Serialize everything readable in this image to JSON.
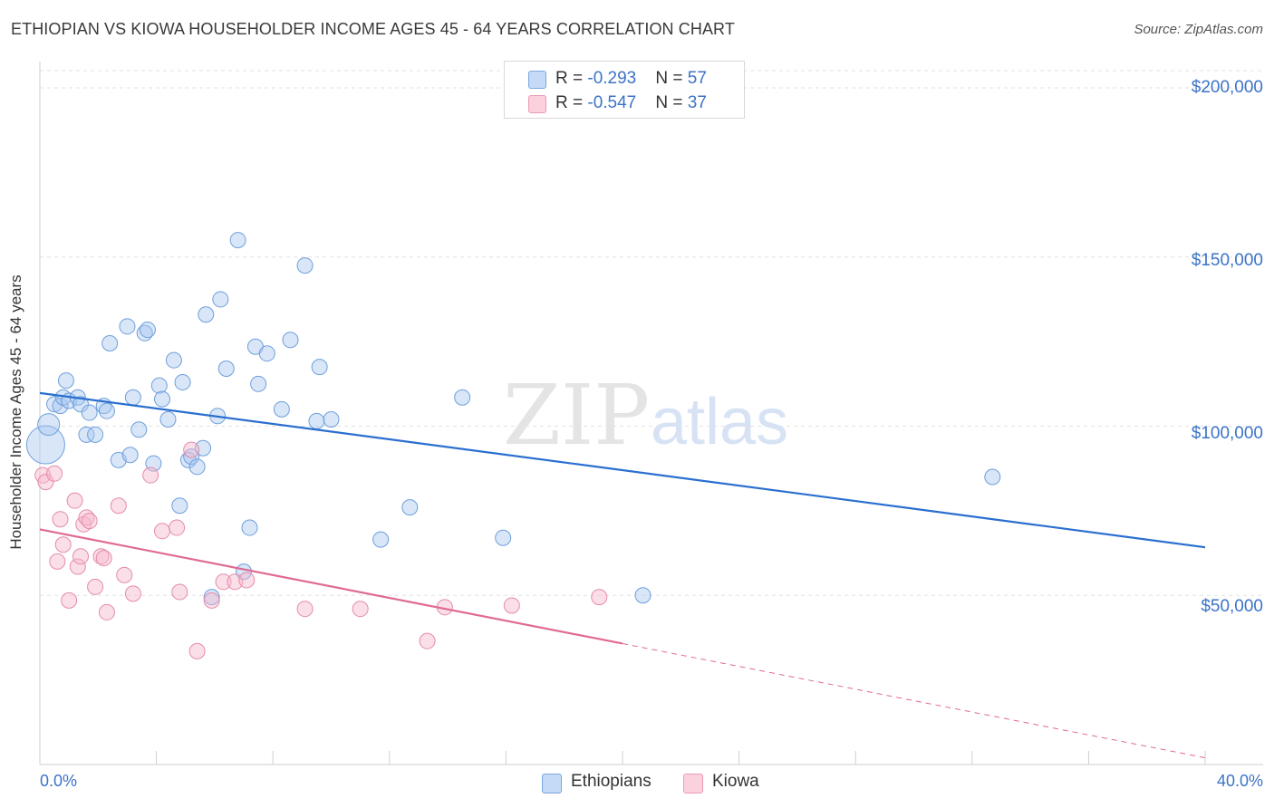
{
  "header": {
    "title": "ETHIOPIAN VS KIOWA HOUSEHOLDER INCOME AGES 45 - 64 YEARS CORRELATION CHART",
    "source": "Source: ZipAtlas.com"
  },
  "watermark": {
    "zip": "ZIP",
    "atlas": "atlas"
  },
  "legend_top": {
    "rows": [
      {
        "r_label": "R = ",
        "r_value": "-0.293",
        "n_label": "N = ",
        "n_value": "57",
        "color": "#a9c8f0"
      },
      {
        "r_label": "R = ",
        "r_value": "-0.547",
        "n_label": "N = ",
        "n_value": "37",
        "color": "#f6b8cd"
      }
    ]
  },
  "legend_bottom": [
    {
      "label": "Ethiopians",
      "color": "#a9c8f0"
    },
    {
      "label": "Kiowa",
      "color": "#f6b8cd"
    }
  ],
  "chart_data": {
    "type": "scatter",
    "title": "ETHIOPIAN VS KIOWA HOUSEHOLDER INCOME AGES 45 - 64 YEARS CORRELATION CHART",
    "xlabel": "",
    "ylabel": "Householder Income Ages 45 - 64 years",
    "xlim": [
      0,
      40
    ],
    "ylim": [
      0,
      200000
    ],
    "x_tick_labels": [
      "0.0%",
      "40.0%"
    ],
    "y_ticks": [
      50000,
      100000,
      150000,
      200000
    ],
    "y_tick_labels": [
      "$50,000",
      "$100,000",
      "$150,000",
      "$200,000"
    ],
    "grid": true,
    "legend": "bottom-center",
    "series": [
      {
        "name": "Ethiopians",
        "color": "#a9c8f0",
        "stroke": "#6f9fdc",
        "trend_color": "#2a6fd0",
        "R": -0.293,
        "N": 57,
        "trend": {
          "x": [
            0,
            40
          ],
          "y": [
            109800,
            64200
          ],
          "dashed_from": 40
        },
        "points": [
          [
            0.2,
            94500,
            3
          ],
          [
            0.3,
            100500,
            2
          ],
          [
            0.5,
            106500,
            1
          ],
          [
            0.7,
            106000,
            1
          ],
          [
            0.8,
            108500,
            1
          ],
          [
            0.9,
            113500,
            1
          ],
          [
            1.0,
            107500,
            1
          ],
          [
            1.3,
            108500,
            1
          ],
          [
            1.4,
            106500,
            1
          ],
          [
            1.6,
            97500,
            1
          ],
          [
            1.7,
            104000,
            1
          ],
          [
            1.9,
            97500,
            1
          ],
          [
            2.2,
            106000,
            1
          ],
          [
            2.3,
            104500,
            1
          ],
          [
            2.4,
            124500,
            1
          ],
          [
            2.7,
            90000,
            1
          ],
          [
            3.0,
            129500,
            1
          ],
          [
            3.1,
            91500,
            1
          ],
          [
            3.2,
            108500,
            1
          ],
          [
            3.4,
            99000,
            1
          ],
          [
            3.6,
            127500,
            1
          ],
          [
            3.7,
            128500,
            1
          ],
          [
            3.9,
            89000,
            1
          ],
          [
            4.1,
            112000,
            1
          ],
          [
            4.2,
            108000,
            1
          ],
          [
            4.4,
            102000,
            1
          ],
          [
            4.6,
            119500,
            1
          ],
          [
            4.8,
            76500,
            1
          ],
          [
            4.9,
            113000,
            1
          ],
          [
            5.1,
            90000,
            1
          ],
          [
            5.2,
            91000,
            1
          ],
          [
            5.4,
            88000,
            1
          ],
          [
            5.6,
            93500,
            1
          ],
          [
            5.7,
            133000,
            1
          ],
          [
            5.9,
            49500,
            1
          ],
          [
            6.1,
            103000,
            1
          ],
          [
            6.2,
            137500,
            1
          ],
          [
            6.4,
            117000,
            1
          ],
          [
            6.8,
            155000,
            1
          ],
          [
            7.0,
            57000,
            1
          ],
          [
            7.2,
            70000,
            1
          ],
          [
            7.4,
            123500,
            1
          ],
          [
            7.5,
            112500,
            1
          ],
          [
            7.8,
            121500,
            1
          ],
          [
            8.3,
            105000,
            1
          ],
          [
            8.6,
            125500,
            1
          ],
          [
            9.1,
            147500,
            1
          ],
          [
            9.5,
            101500,
            1
          ],
          [
            9.6,
            117500,
            1
          ],
          [
            10.0,
            102000,
            1
          ],
          [
            11.7,
            66500,
            1
          ],
          [
            12.7,
            76000,
            1
          ],
          [
            14.5,
            108500,
            1
          ],
          [
            15.9,
            67000,
            1
          ],
          [
            20.7,
            50000,
            1
          ],
          [
            32.7,
            85000,
            1
          ]
        ]
      },
      {
        "name": "Kiowa",
        "color": "#f6b8cd",
        "stroke": "#e58bab",
        "trend_color": "#e06a95",
        "R": -0.547,
        "N": 37,
        "trend": {
          "x": [
            0,
            40
          ],
          "y": [
            69500,
            2000
          ],
          "dashed_from": 20
        },
        "points": [
          [
            0.1,
            85500,
            1
          ],
          [
            0.2,
            83500,
            1
          ],
          [
            0.5,
            86000,
            1
          ],
          [
            0.6,
            60000,
            1
          ],
          [
            0.7,
            72500,
            1
          ],
          [
            0.8,
            65000,
            1
          ],
          [
            1.0,
            48500,
            1
          ],
          [
            1.2,
            78000,
            1
          ],
          [
            1.3,
            58500,
            1
          ],
          [
            1.4,
            61500,
            1
          ],
          [
            1.5,
            71000,
            1
          ],
          [
            1.6,
            73000,
            1
          ],
          [
            1.7,
            72000,
            1
          ],
          [
            1.9,
            52500,
            1
          ],
          [
            2.1,
            61500,
            1
          ],
          [
            2.2,
            61000,
            1
          ],
          [
            2.3,
            45000,
            1
          ],
          [
            2.7,
            76500,
            1
          ],
          [
            2.9,
            56000,
            1
          ],
          [
            3.2,
            50500,
            1
          ],
          [
            3.8,
            85500,
            1
          ],
          [
            4.2,
            69000,
            1
          ],
          [
            4.7,
            70000,
            1
          ],
          [
            4.8,
            51000,
            1
          ],
          [
            5.2,
            93000,
            1
          ],
          [
            5.4,
            33500,
            1
          ],
          [
            5.9,
            48500,
            1
          ],
          [
            6.3,
            54000,
            1
          ],
          [
            6.7,
            54000,
            1
          ],
          [
            7.1,
            54500,
            1
          ],
          [
            9.1,
            46000,
            1
          ],
          [
            11.0,
            46000,
            1
          ],
          [
            13.3,
            36500,
            1
          ],
          [
            13.9,
            46500,
            1
          ],
          [
            16.2,
            47000,
            1
          ],
          [
            19.2,
            49500,
            1
          ]
        ]
      }
    ]
  }
}
